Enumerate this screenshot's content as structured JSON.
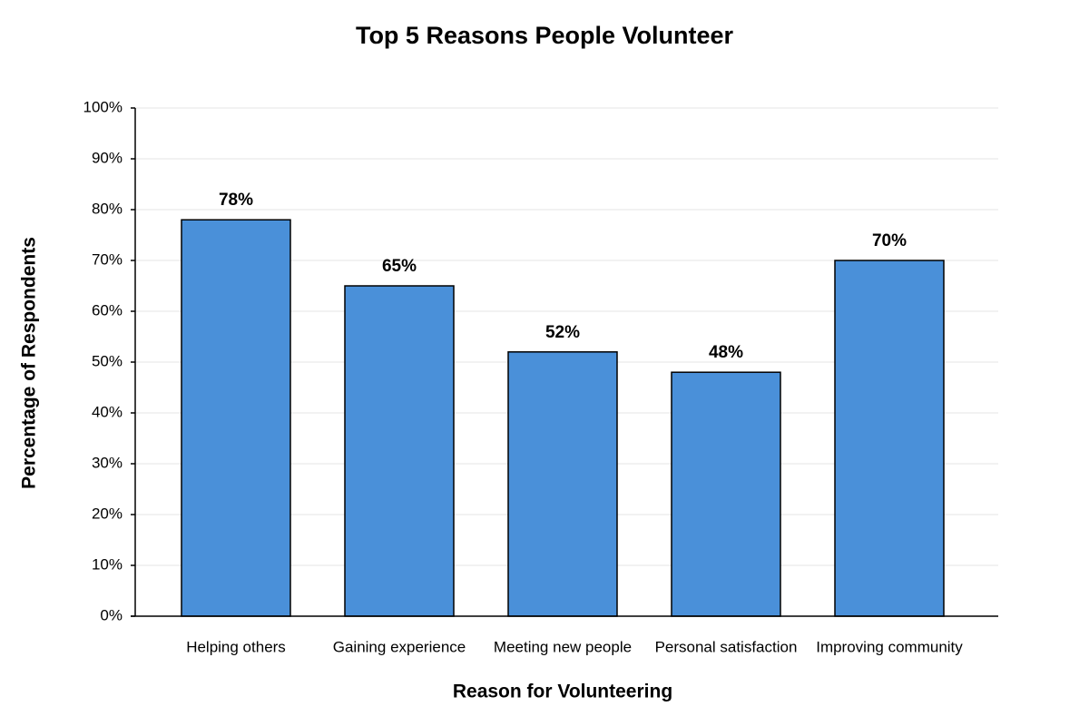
{
  "chart_data": {
    "type": "bar",
    "title": "Top 5 Reasons People Volunteer",
    "x_label": "Reason for Volunteering",
    "y_label": "Percentage of Respondents",
    "categories": [
      "Helping others",
      "Gaining experience",
      "Meeting new people",
      "Personal satisfaction",
      "Improving community"
    ],
    "values": [
      78,
      65,
      52,
      48,
      70
    ],
    "value_labels": [
      "78%",
      "65%",
      "52%",
      "48%",
      "70%"
    ],
    "color": "#4a90d9",
    "ylim": [
      0,
      100
    ],
    "yticks": [
      {
        "value": 0,
        "label": "0%"
      },
      {
        "value": 10,
        "label": "10%"
      },
      {
        "value": 20,
        "label": "20%"
      },
      {
        "value": 30,
        "label": "30%"
      },
      {
        "value": 40,
        "label": "40%"
      },
      {
        "value": 50,
        "label": "50%"
      },
      {
        "value": 60,
        "label": "60%"
      },
      {
        "value": 70,
        "label": "70%"
      },
      {
        "value": 80,
        "label": "80%"
      },
      {
        "value": 90,
        "label": "90%"
      },
      {
        "value": 100,
        "label": "100%"
      }
    ],
    "grid": true
  }
}
